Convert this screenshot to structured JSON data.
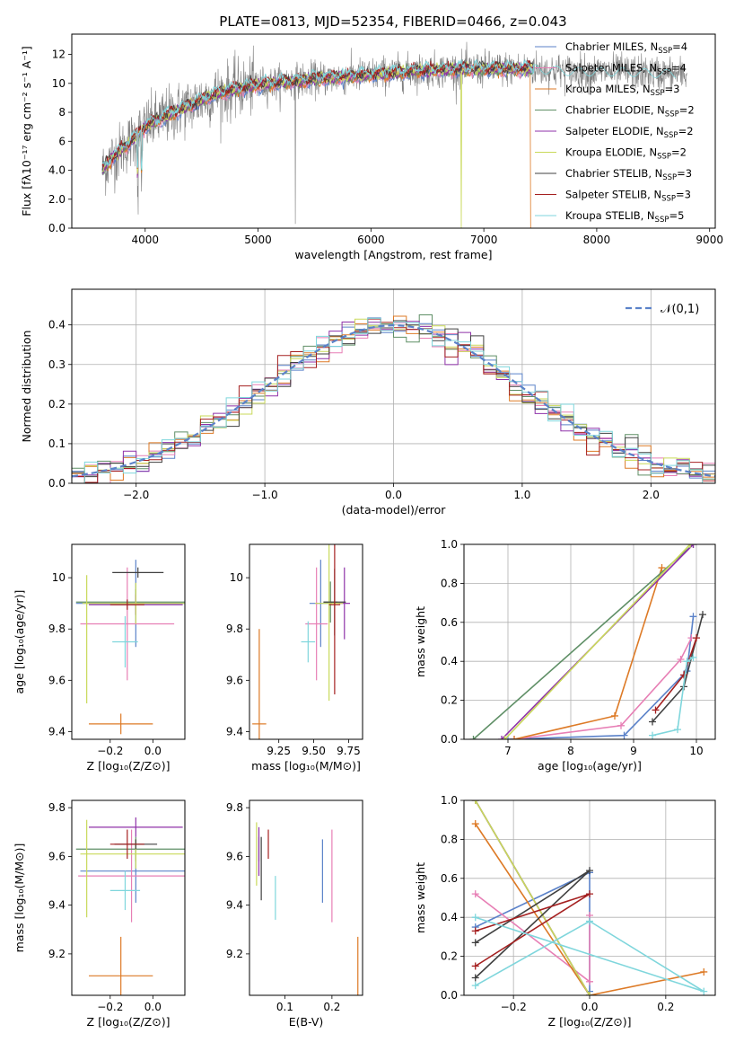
{
  "figure": {
    "title": "PLATE=0813, MJD=52354, FIBERID=0466, z=0.043"
  },
  "models": [
    {
      "name": "Chabrier MILES, N",
      "sub": "SSP",
      "tail": "=4",
      "color": "#5b82c9"
    },
    {
      "name": "Salpeter MILES, N",
      "sub": "SSP",
      "tail": "=4",
      "color": "#e77fb5"
    },
    {
      "name": "Kroupa MILES, N",
      "sub": "SSP",
      "tail": "=3",
      "color": "#dd7a26"
    },
    {
      "name": "Chabrier ELODIE, N",
      "sub": "SSP",
      "tail": "=2",
      "color": "#5f8f66"
    },
    {
      "name": "Salpeter ELODIE, N",
      "sub": "SSP",
      "tail": "=2",
      "color": "#8f32a9"
    },
    {
      "name": "Kroupa ELODIE, N",
      "sub": "SSP",
      "tail": "=2",
      "color": "#c9d95a"
    },
    {
      "name": "Chabrier STELIB, N",
      "sub": "SSP",
      "tail": "=3",
      "color": "#404040"
    },
    {
      "name": "Salpeter STELIB, N",
      "sub": "SSP",
      "tail": "=3",
      "color": "#a52020"
    },
    {
      "name": "Kroupa STELIB, N",
      "sub": "SSP",
      "tail": "=5",
      "color": "#7fd6dc"
    }
  ],
  "chart_data": [
    {
      "id": "spectrum",
      "type": "line",
      "xlabel": "wavelength [Angstrom, rest frame]",
      "ylabel": "Flux [fλ10⁻¹⁷ erg cm⁻² s⁻¹ A⁻¹]",
      "xlim": [
        3350,
        9050
      ],
      "ylim": [
        0,
        13.4
      ],
      "xticks": [
        4000,
        5000,
        6000,
        7000,
        8000,
        9000
      ],
      "yticks": [
        0,
        2,
        4,
        6,
        8,
        10,
        12
      ],
      "data_color": "#808080",
      "data_range": [
        3620,
        8800
      ],
      "model_range": [
        3620,
        7440
      ],
      "continuum": [
        [
          3620,
          4.0
        ],
        [
          3700,
          4.8
        ],
        [
          3800,
          5.5
        ],
        [
          3900,
          6.2
        ],
        [
          4000,
          7.0
        ],
        [
          4200,
          7.8
        ],
        [
          4400,
          8.5
        ],
        [
          4600,
          9.2
        ],
        [
          4800,
          9.6
        ],
        [
          5000,
          9.9
        ],
        [
          5500,
          10.3
        ],
        [
          6000,
          10.6
        ],
        [
          6500,
          10.9
        ],
        [
          7000,
          11.0
        ],
        [
          7440,
          11.0
        ],
        [
          7800,
          10.8
        ],
        [
          8200,
          10.8
        ],
        [
          8500,
          10.7
        ],
        [
          8800,
          10.6
        ]
      ],
      "legend_position": "upper-right"
    },
    {
      "id": "residuals",
      "type": "line",
      "xlabel": "(data-model)/error",
      "ylabel": "Normed distribution",
      "xlim": [
        -2.5,
        2.5
      ],
      "ylim": [
        0,
        0.49
      ],
      "xticks": [
        -2,
        -1,
        0,
        1,
        2
      ],
      "yticks": [
        0.0,
        0.1,
        0.2,
        0.3,
        0.4
      ],
      "reference": {
        "label": "𝒩(0,1)",
        "mean": 0,
        "sigma": 1,
        "color": "#5b82c9"
      },
      "bin_width": 0.1,
      "grid": true,
      "legend_position": "upper-right"
    },
    {
      "id": "age_vs_Z",
      "type": "scatter",
      "xlabel": "Z [log₁₀(Z/Z⊙)]",
      "ylabel": "age  [log₁₀(age/yr)]",
      "xlim": [
        -0.38,
        0.15
      ],
      "ylim": [
        9.37,
        10.13
      ],
      "xticks": [
        -0.2,
        0.0
      ],
      "yticks": [
        9.4,
        9.6,
        9.8,
        10.0
      ],
      "points": [
        {
          "model": 0,
          "x": -0.08,
          "y": 9.9,
          "xerr": 0.28,
          "yerr": 0.17
        },
        {
          "model": 1,
          "x": -0.12,
          "y": 9.82,
          "xerr": 0.22,
          "yerr": 0.22
        },
        {
          "model": 2,
          "x": -0.15,
          "y": 9.43,
          "xerr": 0.15,
          "yerr": 0.04
        },
        {
          "model": 3,
          "x": -0.08,
          "y": 9.905,
          "xerr": 0.28,
          "yerr": 0.05
        },
        {
          "model": 4,
          "x": -0.08,
          "y": 9.895,
          "xerr": 0.22,
          "yerr": 0.04
        },
        {
          "model": 5,
          "x": -0.08,
          "y": 9.9,
          "xerr": 0.25,
          "yerr": 0.08
        },
        {
          "model": 6,
          "x": -0.07,
          "y": 10.02,
          "xerr": 0.12,
          "yerr": 0.02
        },
        {
          "model": 7,
          "x": -0.12,
          "y": 9.895,
          "xerr": 0.08,
          "yerr": 0.02
        },
        {
          "model": 8,
          "x": -0.13,
          "y": 9.75,
          "xerr": 0.06,
          "yerr": 0.1
        },
        {
          "model": 5,
          "x": -0.31,
          "y": 9.76,
          "xerr": 0.0,
          "yerr": 0.25
        }
      ]
    },
    {
      "id": "age_vs_mass",
      "type": "scatter",
      "xlabel": "mass [log₁₀(M/M⊙)]",
      "ylabel": "",
      "xlim": [
        9.04,
        9.85
      ],
      "ylim": [
        9.37,
        10.13
      ],
      "xticks": [
        9.25,
        9.5,
        9.75
      ],
      "xticklabels": [
        "9.25",
        "9.50",
        "9.75"
      ],
      "yticks": [
        9.4,
        9.6,
        9.8,
        10.0
      ],
      "points": [
        {
          "model": 0,
          "x": 9.55,
          "y": 9.9,
          "xerr": 0.08,
          "yerr": 0.17
        },
        {
          "model": 1,
          "x": 9.52,
          "y": 9.82,
          "xerr": 0.08,
          "yerr": 0.22
        },
        {
          "model": 2,
          "x": 9.11,
          "y": 9.43,
          "xerr": 0.05,
          "yerr": 0.37
        },
        {
          "model": 3,
          "x": 9.62,
          "y": 9.905,
          "xerr": 0.05,
          "yerr": 0.08
        },
        {
          "model": 4,
          "x": 9.72,
          "y": 9.9,
          "xerr": 0.04,
          "yerr": 0.14
        },
        {
          "model": 5,
          "x": 9.61,
          "y": 9.9,
          "xerr": 0.1,
          "yerr": 0.38
        },
        {
          "model": 6,
          "x": 9.65,
          "y": 9.905,
          "xerr": 0.08,
          "yerr": 0.13
        },
        {
          "model": 7,
          "x": 9.65,
          "y": 9.895,
          "xerr": 0.04,
          "yerr": 0.35
        },
        {
          "model": 8,
          "x": 9.46,
          "y": 9.75,
          "xerr": 0.05,
          "yerr": 0.08
        }
      ]
    },
    {
      "id": "massweight_vs_age",
      "type": "line",
      "xlabel": "age  [log₁₀(age/yr)]",
      "ylabel": "mass weight",
      "xlim": [
        6.3,
        10.3
      ],
      "ylim": [
        0.0,
        1.0
      ],
      "xticks": [
        7,
        8,
        9,
        10
      ],
      "yticks": [
        0.0,
        0.2,
        0.4,
        0.6,
        0.8,
        1.0
      ],
      "grid": true,
      "series": [
        {
          "model": 0,
          "points": [
            [
              7.0,
              0.0
            ],
            [
              8.85,
              0.02
            ],
            [
              9.85,
              0.35
            ],
            [
              9.95,
              0.63
            ]
          ]
        },
        {
          "model": 1,
          "points": [
            [
              7.1,
              0.0
            ],
            [
              8.8,
              0.07
            ],
            [
              9.75,
              0.41
            ],
            [
              9.92,
              0.52
            ]
          ]
        },
        {
          "model": 2,
          "points": [
            [
              7.1,
              0.0
            ],
            [
              8.7,
              0.12
            ],
            [
              9.45,
              0.88
            ]
          ]
        },
        {
          "model": 3,
          "points": [
            [
              6.45,
              0.0
            ],
            [
              9.95,
              1.0
            ]
          ]
        },
        {
          "model": 4,
          "points": [
            [
              6.9,
              0.0
            ],
            [
              9.95,
              1.0
            ]
          ]
        },
        {
          "model": 5,
          "points": [
            [
              6.95,
              0.0
            ],
            [
              9.9,
              1.0
            ]
          ]
        },
        {
          "model": 6,
          "points": [
            [
              9.3,
              0.09
            ],
            [
              9.8,
              0.27
            ],
            [
              10.1,
              0.64
            ]
          ]
        },
        {
          "model": 7,
          "points": [
            [
              9.35,
              0.15
            ],
            [
              9.8,
              0.33
            ],
            [
              10.0,
              0.52
            ]
          ]
        },
        {
          "model": 8,
          "points": [
            [
              9.3,
              0.02
            ],
            [
              9.7,
              0.05
            ],
            [
              9.85,
              0.4
            ],
            [
              9.95,
              0.42
            ]
          ]
        }
      ]
    },
    {
      "id": "mass_vs_Z",
      "type": "scatter",
      "xlabel": "Z [log₁₀(Z/Z⊙)]",
      "ylabel": "mass [log₁₀(M/M⊙)]",
      "xlim": [
        -0.38,
        0.15
      ],
      "ylim": [
        9.03,
        9.83
      ],
      "xticks": [
        -0.2,
        0.0
      ],
      "yticks": [
        9.2,
        9.4,
        9.6,
        9.8
      ],
      "points": [
        {
          "model": 0,
          "x": -0.08,
          "y": 9.54,
          "xerr": 0.26,
          "yerr": 0.13
        },
        {
          "model": 1,
          "x": -0.1,
          "y": 9.52,
          "xerr": 0.25,
          "yerr": 0.19
        },
        {
          "model": 2,
          "x": -0.15,
          "y": 9.11,
          "xerr": 0.15,
          "yerr": 0.16
        },
        {
          "model": 3,
          "x": -0.08,
          "y": 9.63,
          "xerr": 0.28,
          "yerr": 0.05
        },
        {
          "model": 4,
          "x": -0.08,
          "y": 9.72,
          "xerr": 0.22,
          "yerr": 0.04
        },
        {
          "model": 5,
          "x": -0.08,
          "y": 9.61,
          "xerr": 0.26,
          "yerr": 0.06
        },
        {
          "model": 6,
          "x": -0.08,
          "y": 9.65,
          "xerr": 0.1,
          "yerr": 0.02
        },
        {
          "model": 7,
          "x": -0.12,
          "y": 9.65,
          "xerr": 0.08,
          "yerr": 0.06
        },
        {
          "model": 8,
          "x": -0.13,
          "y": 9.46,
          "xerr": 0.07,
          "yerr": 0.08
        },
        {
          "model": 5,
          "x": -0.31,
          "y": 9.55,
          "xerr": 0.0,
          "yerr": 0.2
        }
      ]
    },
    {
      "id": "mass_vs_ebv",
      "type": "scatter",
      "xlabel": "E(B-V)",
      "ylabel": "",
      "xlim": [
        0.025,
        0.265
      ],
      "ylim": [
        9.03,
        9.83
      ],
      "xticks": [
        0.1,
        0.2
      ],
      "yticks": [
        9.2,
        9.4,
        9.6,
        9.8
      ],
      "points": [
        {
          "model": 0,
          "x": 0.18,
          "y": 9.54,
          "xerr": 0.0,
          "yerr": 0.13
        },
        {
          "model": 1,
          "x": 0.2,
          "y": 9.52,
          "xerr": 0.0,
          "yerr": 0.19
        },
        {
          "model": 2,
          "x": 0.255,
          "y": 9.11,
          "xerr": 0.0,
          "yerr": 0.16
        },
        {
          "model": 3,
          "x": 0.045,
          "y": 9.63,
          "xerr": 0.0,
          "yerr": 0.05
        },
        {
          "model": 4,
          "x": 0.045,
          "y": 9.62,
          "xerr": 0.0,
          "yerr": 0.1
        },
        {
          "model": 5,
          "x": 0.04,
          "y": 9.61,
          "xerr": 0.0,
          "yerr": 0.13
        },
        {
          "model": 6,
          "x": 0.05,
          "y": 9.55,
          "xerr": 0.0,
          "yerr": 0.13
        },
        {
          "model": 7,
          "x": 0.065,
          "y": 9.65,
          "xerr": 0.0,
          "yerr": 0.06
        },
        {
          "model": 8,
          "x": 0.08,
          "y": 9.43,
          "xerr": 0.0,
          "yerr": 0.09
        }
      ]
    },
    {
      "id": "massweight_vs_Z",
      "type": "line",
      "xlabel": "Z [log₁₀(Z/Z⊙)]",
      "ylabel": "mass weight",
      "xlim": [
        -0.33,
        0.33
      ],
      "ylim": [
        0.0,
        1.0
      ],
      "xticks": [
        -0.2,
        0.0,
        0.2
      ],
      "yticks": [
        0.0,
        0.2,
        0.4,
        0.6,
        0.8,
        1.0
      ],
      "grid": true,
      "series": [
        {
          "model": 0,
          "points": [
            [
              -0.3,
              0.35
            ],
            [
              0.0,
              0.63
            ],
            [
              0.0,
              0.02
            ]
          ]
        },
        {
          "model": 1,
          "points": [
            [
              -0.3,
              0.52
            ],
            [
              0.0,
              0.07
            ],
            [
              0.0,
              0.41
            ]
          ]
        },
        {
          "model": 2,
          "points": [
            [
              -0.3,
              0.88
            ],
            [
              0.0,
              0.0
            ],
            [
              0.3,
              0.12
            ]
          ]
        },
        {
          "model": 3,
          "points": [
            [
              -0.3,
              1.0
            ],
            [
              0.0,
              0.0
            ]
          ]
        },
        {
          "model": 4,
          "points": [
            [
              -0.3,
              1.0
            ],
            [
              0.0,
              0.0
            ]
          ]
        },
        {
          "model": 5,
          "points": [
            [
              -0.3,
              1.0
            ],
            [
              0.0,
              0.0
            ]
          ]
        },
        {
          "model": 6,
          "points": [
            [
              -0.3,
              0.27
            ],
            [
              0.0,
              0.64
            ],
            [
              -0.3,
              0.09
            ]
          ]
        },
        {
          "model": 7,
          "points": [
            [
              -0.3,
              0.33
            ],
            [
              0.0,
              0.52
            ],
            [
              -0.3,
              0.15
            ]
          ]
        },
        {
          "model": 8,
          "points": [
            [
              -0.3,
              0.05
            ],
            [
              0.0,
              0.38
            ],
            [
              0.3,
              0.02
            ],
            [
              -0.3,
              0.4
            ]
          ]
        }
      ]
    }
  ]
}
